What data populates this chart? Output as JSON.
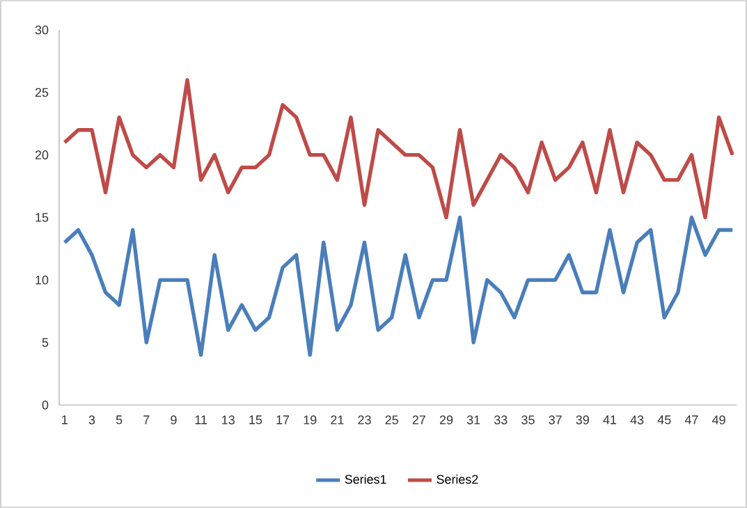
{
  "chart_data": {
    "type": "line",
    "categories": [
      "1",
      null,
      "3",
      null,
      "5",
      null,
      "7",
      null,
      "9",
      null,
      "11",
      null,
      "13",
      null,
      "15",
      null,
      "17",
      null,
      "19",
      null,
      "21",
      null,
      "23",
      null,
      "25",
      null,
      "27",
      null,
      "29",
      null,
      "31",
      null,
      "33",
      null,
      "35",
      null,
      "37",
      null,
      "39",
      null,
      "41",
      null,
      "43",
      null,
      "45",
      null,
      "47",
      null,
      "49",
      null
    ],
    "series": [
      {
        "name": "Series1",
        "color": "#4a7ebb",
        "values": [
          13,
          14,
          12,
          9,
          8,
          14,
          5,
          10,
          10,
          10,
          4,
          12,
          6,
          8,
          6,
          7,
          11,
          12,
          4,
          13,
          6,
          8,
          13,
          6,
          7,
          12,
          7,
          10,
          10,
          15,
          5,
          10,
          9,
          7,
          10,
          10,
          10,
          12,
          9,
          9,
          14,
          9,
          13,
          14,
          7,
          9,
          15,
          12,
          14,
          14
        ]
      },
      {
        "name": "Series2",
        "color": "#be4b48",
        "values": [
          21,
          22,
          22,
          17,
          23,
          20,
          19,
          20,
          19,
          26,
          18,
          20,
          17,
          19,
          19,
          20,
          24,
          23,
          20,
          20,
          18,
          23,
          16,
          22,
          21,
          20,
          20,
          19,
          15,
          22,
          16,
          18,
          20,
          19,
          17,
          21,
          18,
          19,
          21,
          17,
          22,
          17,
          21,
          20,
          18,
          18,
          20,
          15,
          23,
          20
        ]
      }
    ],
    "ylim": [
      0,
      30
    ],
    "yticks": [
      0,
      5,
      10,
      15,
      20,
      25,
      30
    ],
    "grid": false,
    "legend": "bottom"
  }
}
